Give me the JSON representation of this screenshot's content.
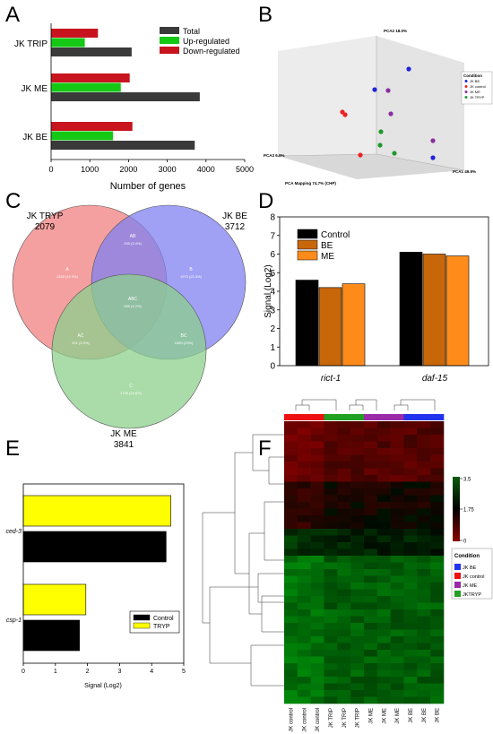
{
  "panel_letters": [
    "A",
    "B",
    "C",
    "D",
    "E",
    "F"
  ],
  "chart_data": [
    {
      "panel": "A",
      "type": "bar",
      "orientation": "horizontal",
      "categories": [
        "JK TRIP",
        "JK ME",
        "JK BE"
      ],
      "series": [
        {
          "name": "Total",
          "color": "#3a3a3a",
          "values": [
            2080,
            3840,
            3710
          ]
        },
        {
          "name": "Up-regulated",
          "color": "#14c814",
          "values": [
            870,
            1800,
            1600
          ]
        },
        {
          "name": "Down-regulated",
          "color": "#c8141e",
          "values": [
            1210,
            2030,
            2100
          ]
        }
      ],
      "xlabel": "Number of genes",
      "xlim": [
        0,
        5000
      ],
      "xticks": [
        "0",
        "1000",
        "2000",
        "3000",
        "4000",
        "5000"
      ],
      "legend_position": "top-right"
    },
    {
      "panel": "B",
      "type": "scatter",
      "projection": "3d",
      "axis_labels": {
        "pca2": "PCA2 18.0%",
        "pca1": "PCA1 49.9%",
        "pca3": "PCA3 6.9%"
      },
      "caption": "PCA Mapping 74.7% (CHP)",
      "legend_title": "Condition",
      "legend_items": [
        {
          "label": "JK BE",
          "color": "#2222dd"
        },
        {
          "label": "JK control",
          "color": "#ee2222"
        },
        {
          "label": "JK ME",
          "color": "#8a2ea0"
        },
        {
          "label": "JK TRYP",
          "color": "#1e9a2a"
        }
      ]
    },
    {
      "panel": "C",
      "type": "venn",
      "sets": [
        {
          "name": "JK TRYP",
          "size": "2079",
          "color": "#f08080"
        },
        {
          "name": "JK BE",
          "size": "3712",
          "color": "#8080f0"
        },
        {
          "name": "JK ME",
          "size": "3841",
          "color": "#8cd08c"
        }
      ],
      "regions": [
        {
          "id": "A",
          "label": "1330 (19.3%)"
        },
        {
          "id": "B",
          "label": "1973 (23.3%)"
        },
        {
          "id": "C",
          "label": "1738 (24.8%)"
        },
        {
          "id": "AB",
          "label": "235 (3.4%)"
        },
        {
          "id": "AC",
          "label": "201 (2.9%)"
        },
        {
          "id": "BC",
          "label": "1609 (23%)"
        },
        {
          "id": "ABC",
          "label": "295 (4.2%)"
        }
      ]
    },
    {
      "panel": "D",
      "type": "bar",
      "categories": [
        "rict-1",
        "daf-15"
      ],
      "series": [
        {
          "name": "Control",
          "color": "#000000",
          "values": [
            4.6,
            6.1
          ]
        },
        {
          "name": "BE",
          "color": "#c8660a",
          "values": [
            4.2,
            6.0
          ]
        },
        {
          "name": "ME",
          "color": "#ff8c1a",
          "values": [
            4.4,
            5.9
          ]
        }
      ],
      "ylabel": "Signal (Log2)",
      "ylim": [
        0,
        8
      ],
      "yticks": [
        "0",
        "1",
        "2",
        "3",
        "4",
        "5",
        "6",
        "7",
        "8"
      ],
      "legend_position": "top-left"
    },
    {
      "panel": "E",
      "type": "bar",
      "orientation": "horizontal",
      "categories": [
        "ced-3",
        "csp-1"
      ],
      "series": [
        {
          "name": "Control",
          "color": "#000000",
          "values": [
            4.45,
            1.75
          ]
        },
        {
          "name": "TRYP",
          "color": "#ffff00",
          "values": [
            4.6,
            1.95
          ]
        }
      ],
      "xlabel": "Signal (Log2)",
      "xlim": [
        0,
        5
      ],
      "xticks": [
        "0",
        "1",
        "2",
        "3",
        "4",
        "5"
      ],
      "legend_position": "bottom-right"
    },
    {
      "panel": "F",
      "type": "heatmap",
      "columns": [
        "JK control",
        "JK control",
        "JK control",
        "JK TRIP",
        "JK TRIP",
        "JK TRIP",
        "JK ME",
        "JK ME",
        "JK ME",
        "JK BE",
        "JK BE",
        "JK BE"
      ],
      "condition_bar": [
        "#ee1111",
        "#ee1111",
        "#ee1111",
        "#22a022",
        "#22a022",
        "#22a022",
        "#9a2aa8",
        "#9a2aa8",
        "#9a2aa8",
        "#2233ee",
        "#2233ee",
        "#2233ee"
      ],
      "scale": {
        "ticks": [
          "3.5",
          "1.75",
          "0"
        ],
        "colors": [
          "#0a5a0a",
          "#000000",
          "#8c0000"
        ]
      },
      "legend_title": "Condition",
      "legend_items": [
        {
          "label": "JK BE",
          "color": "#2233ee"
        },
        {
          "label": "JK control",
          "color": "#ee1111"
        },
        {
          "label": "JK ME",
          "color": "#9a2aa8"
        },
        {
          "label": "JKTRYP",
          "color": "#22a022"
        }
      ]
    }
  ]
}
